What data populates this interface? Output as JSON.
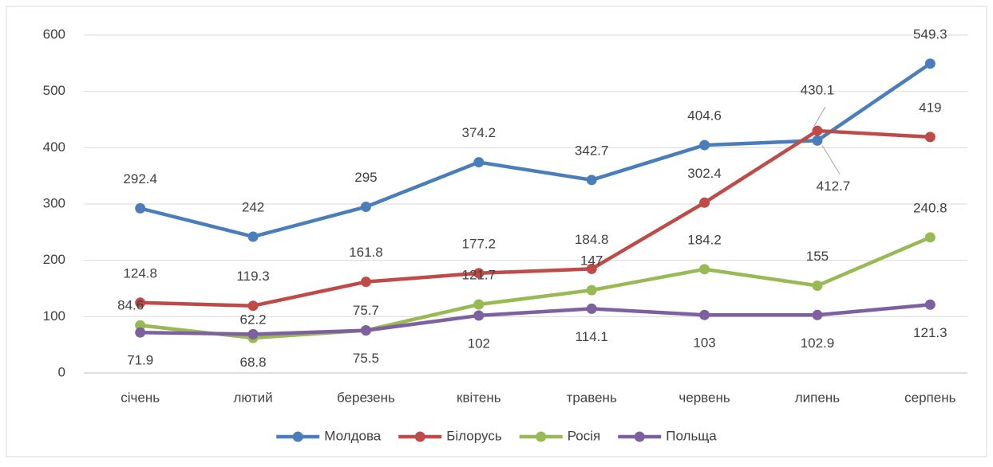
{
  "chart_data": {
    "type": "line",
    "categories": [
      "січень",
      "лютий",
      "березень",
      "квітень",
      "травень",
      "червень",
      "липень",
      "серпень"
    ],
    "series": [
      {
        "name": "Молдова",
        "color": "#4a7ebb",
        "values": [
          292.4,
          242,
          295,
          374.2,
          342.7,
          404.6,
          412.7,
          549.3
        ]
      },
      {
        "name": "Білорусь",
        "color": "#be4b48",
        "values": [
          124.8,
          119.3,
          161.8,
          177.2,
          184.8,
          302.4,
          430.1,
          419
        ]
      },
      {
        "name": "Росія",
        "color": "#98b954",
        "values": [
          84.6,
          62.2,
          75.7,
          121.7,
          147,
          184.2,
          155,
          240.8
        ]
      },
      {
        "name": "Польща",
        "color": "#7d60a0",
        "values": [
          71.9,
          68.8,
          75.5,
          102,
          114.1,
          103,
          102.9,
          121.3
        ]
      }
    ],
    "ylim": [
      0,
      600
    ],
    "yticks": [
      0,
      100,
      200,
      300,
      400,
      500,
      600
    ],
    "grid": true,
    "legend": "bottom"
  }
}
